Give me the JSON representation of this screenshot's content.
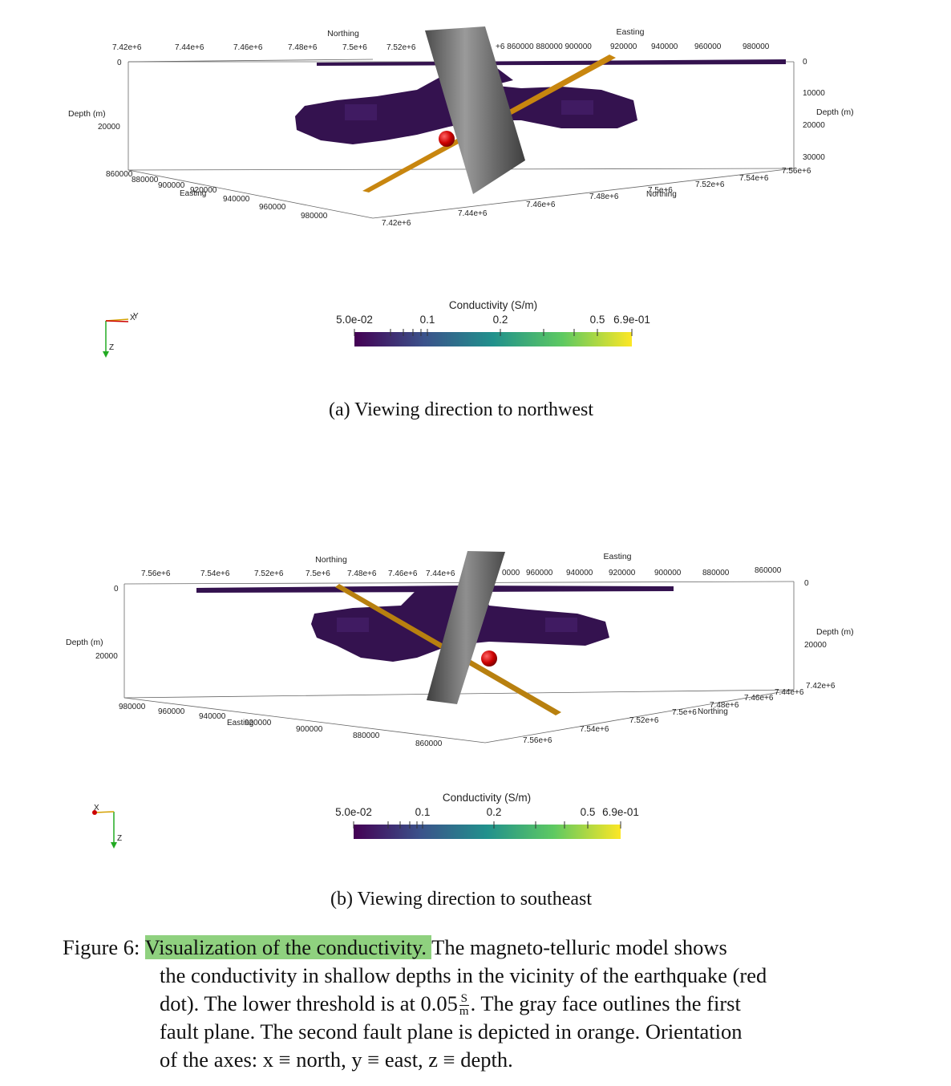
{
  "panel_a": {
    "northing_title": "Northing",
    "easting_title": "Easting",
    "depth_title": "Depth (m)",
    "top_northing_ticks": [
      "7.42e+6",
      "7.44e+6",
      "7.46e+6",
      "7.48e+6",
      "7.5e+6",
      "7.52e+6"
    ],
    "top_easting_ticks": [
      "+6 860000 880000 900000",
      "920000",
      "940000",
      "960000",
      "980000"
    ],
    "left_depth_ticks": [
      "0",
      "20000"
    ],
    "right_depth_ticks": [
      "0",
      "10000",
      "20000",
      "30000"
    ],
    "bottom_easting_ticks": [
      "860000",
      "880000",
      "900000",
      "Easting",
      "920000",
      "940000",
      "960000",
      "980000"
    ],
    "bottom_northing_ticks": [
      "7.42e+6",
      "7.44e+6",
      "7.46e+6",
      "7.48e+6",
      "7.5e+6",
      "Northing",
      "7.52e+6",
      "7.54e+6",
      "7.56e+6"
    ],
    "axes_triad": [
      "X",
      "Y",
      "Z"
    ],
    "colorbar_title": "Conductivity (S/m)",
    "colorbar_ticks": [
      "5.0e-02",
      "0.1",
      "0.2",
      "0.5",
      "6.9e-01"
    ],
    "subcaption": "(a) Viewing direction to northwest"
  },
  "panel_b": {
    "northing_title": "Northing",
    "easting_title": "Easting",
    "depth_title": "Depth (m)",
    "top_northing_ticks": [
      "7.56e+6",
      "7.54e+6",
      "7.52e+6",
      "7.5e+6",
      "7.48e+6",
      "7.46e+6",
      "7.44e+6"
    ],
    "top_easting_ticks": [
      "0000",
      "960000",
      "940000",
      "920000",
      "900000",
      "880000",
      "860000"
    ],
    "left_depth_ticks": [
      "0",
      "20000"
    ],
    "right_depth_ticks": [
      "0",
      "20000"
    ],
    "bottom_easting_ticks": [
      "980000",
      "960000",
      "940000",
      "Easting",
      "920000",
      "900000",
      "880000",
      "860000"
    ],
    "bottom_northing_ticks": [
      "7.56e+6",
      "7.54e+6",
      "7.52e+6",
      "7.5e+6",
      "Northing",
      "7.48e+6",
      "7.46e+6",
      "7.44e+6",
      "7.42e+6"
    ],
    "axes_triad": [
      "X",
      "Z"
    ],
    "colorbar_title": "Conductivity (S/m)",
    "colorbar_ticks": [
      "5.0e-02",
      "0.1",
      "0.2",
      "0.5",
      "6.9e-01"
    ],
    "subcaption": "(b) Viewing direction to southeast"
  },
  "caption": {
    "label": "Figure 6: ",
    "highlight": "Visualization of the conductivity. ",
    "text1": "The magneto-telluric model shows",
    "line2": "the conductivity in shallow depths in the vicinity of the earthquake (red",
    "line3a": "dot). The lower threshold is at 0.05",
    "frac_num": "S",
    "frac_den": "m",
    "line3b": ". The gray face outlines the first",
    "line4": "fault plane. The second fault plane is depicted in orange. Orientation",
    "line5": "of the axes: x ≡ north, y ≡ east, z ≡ depth."
  },
  "colors": {
    "colormap": [
      "#440154",
      "#3b528b",
      "#21918c",
      "#5ec962",
      "#fde725"
    ],
    "conductor": "#3a1a5c",
    "fault_gray": "#6b6b6b",
    "fault_orange": "#c8860f",
    "earthquake": "#cc0000",
    "highlight": "#8fd17f"
  }
}
